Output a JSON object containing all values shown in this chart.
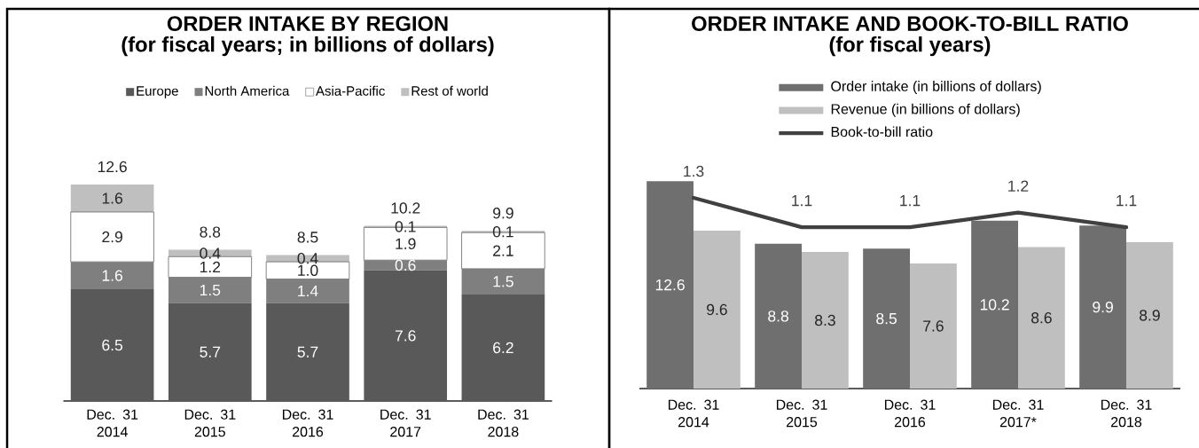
{
  "chart_data": [
    {
      "type": "bar",
      "title": "ORDER INTAKE BY REGION",
      "subtitle": "(for fiscal years; in billions of dollars)",
      "categories": [
        "Dec. 31 2014",
        "Dec. 31 2015",
        "Dec. 31 2016",
        "Dec. 31 2017",
        "Dec. 31 2018"
      ],
      "stacked": true,
      "series": [
        {
          "name": "Europe",
          "color": "#595959",
          "values": [
            6.5,
            5.7,
            5.7,
            7.6,
            6.2
          ],
          "value_labels": [
            "6.5",
            "5.7",
            "5.7",
            "7.6",
            "6.2"
          ]
        },
        {
          "name": "North America",
          "color": "#7f7f7f",
          "values": [
            1.6,
            1.5,
            1.4,
            0.6,
            1.5
          ],
          "value_labels": [
            "1.6",
            "1.5",
            "1.4",
            "0.6",
            "1.5"
          ]
        },
        {
          "name": "Asia-Pacific",
          "color": "#ffffff",
          "values": [
            2.9,
            1.2,
            1.0,
            1.9,
            2.1
          ],
          "value_labels": [
            "2.9",
            "1.2",
            "1.0",
            "1.9",
            "2.1"
          ]
        },
        {
          "name": "Rest of world",
          "color": "#bfbfbf",
          "values": [
            1.6,
            0.4,
            0.4,
            0.1,
            0.1
          ],
          "value_labels": [
            "1.6",
            "0.4",
            "0.4",
            "0.1",
            "0.1"
          ]
        }
      ],
      "totals": [
        "12.6",
        "8.8",
        "8.5",
        "10.2",
        "9.9"
      ],
      "legend": "top"
    },
    {
      "type": "bar",
      "title": "ORDER INTAKE AND BOOK-TO-BILL RATIO",
      "subtitle": "(for fiscal years)",
      "categories": [
        "Dec. 31 2014",
        "Dec. 31 2015",
        "Dec. 31 2016",
        "Dec. 31 2017*",
        "Dec. 31 2018"
      ],
      "series": [
        {
          "name": "Order intake (in billions of dollars)",
          "color": "#6f6f6f",
          "values": [
            12.6,
            8.8,
            8.5,
            10.2,
            9.9
          ]
        },
        {
          "name": "Revenue (in billions of dollars)",
          "color": "#bfbfbf",
          "values": [
            9.6,
            8.3,
            7.6,
            8.6,
            8.9
          ]
        },
        {
          "name": "Book-to-bill ratio",
          "type": "line",
          "axis": "y2",
          "color": "#404040",
          "values": [
            1.3,
            1.1,
            1.1,
            1.2,
            1.1
          ]
        }
      ],
      "data_labels": true,
      "legend": "top"
    }
  ]
}
